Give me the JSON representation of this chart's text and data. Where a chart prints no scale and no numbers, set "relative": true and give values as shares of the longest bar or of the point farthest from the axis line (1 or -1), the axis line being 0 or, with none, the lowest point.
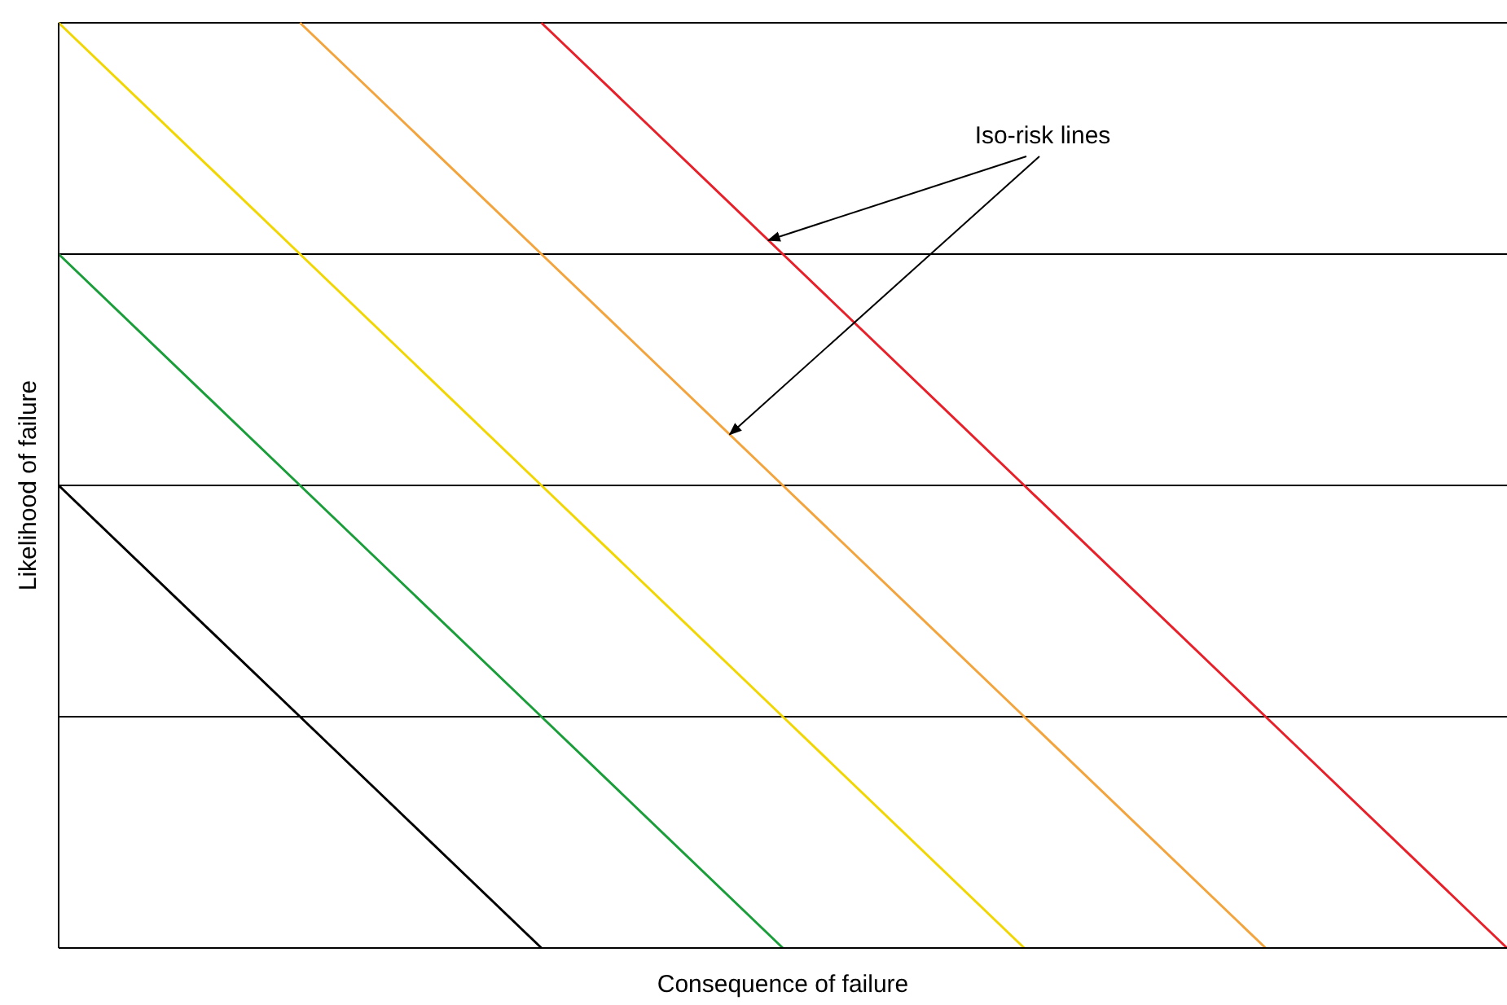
{
  "chart_data": {
    "type": "line",
    "xlabel": "Consequence of failure",
    "ylabel": "Likelihood of failure",
    "relative": true,
    "marker": "none",
    "line_style": "solid",
    "categories": [
      null,
      null,
      null,
      null,
      null,
      null,
      null
    ],
    "series": [
      {
        "color": "#000000",
        "values": [
          0.25,
          0.25,
          0.25,
          0.25,
          0.25,
          0.25,
          0.25
        ]
      },
      {
        "color": "#000000",
        "values": [
          0.5,
          0.5,
          0.5,
          0.5,
          0.5,
          0.5,
          0.5
        ]
      },
      {
        "color": "#000000",
        "values": [
          0.75,
          0.75,
          0.75,
          0.75,
          0.75,
          0.75,
          0.75
        ]
      },
      {
        "color": "#000000",
        "values": [
          1,
          1,
          1,
          1,
          1,
          1,
          1
        ]
      },
      {
        "color": "#000000",
        "values": [
          0.5,
          0.25,
          0,
          null,
          null,
          null,
          null
        ]
      },
      {
        "color": "#1a9e3a",
        "values": [
          0.75,
          0.5,
          0.25,
          0,
          null,
          null,
          null
        ]
      },
      {
        "color": "#f2d600",
        "values": [
          1,
          0.75,
          0.5,
          0.25,
          0,
          null,
          null
        ]
      },
      {
        "color": "#f4a43c",
        "values": [
          null,
          1,
          0.75,
          0.5,
          0.25,
          0,
          null
        ]
      },
      {
        "color": "#e8202a",
        "values": [
          null,
          null,
          1,
          0.75,
          0.5,
          0.25,
          0
        ]
      }
    ],
    "annotations": [
      "Iso-risk lines"
    ]
  }
}
